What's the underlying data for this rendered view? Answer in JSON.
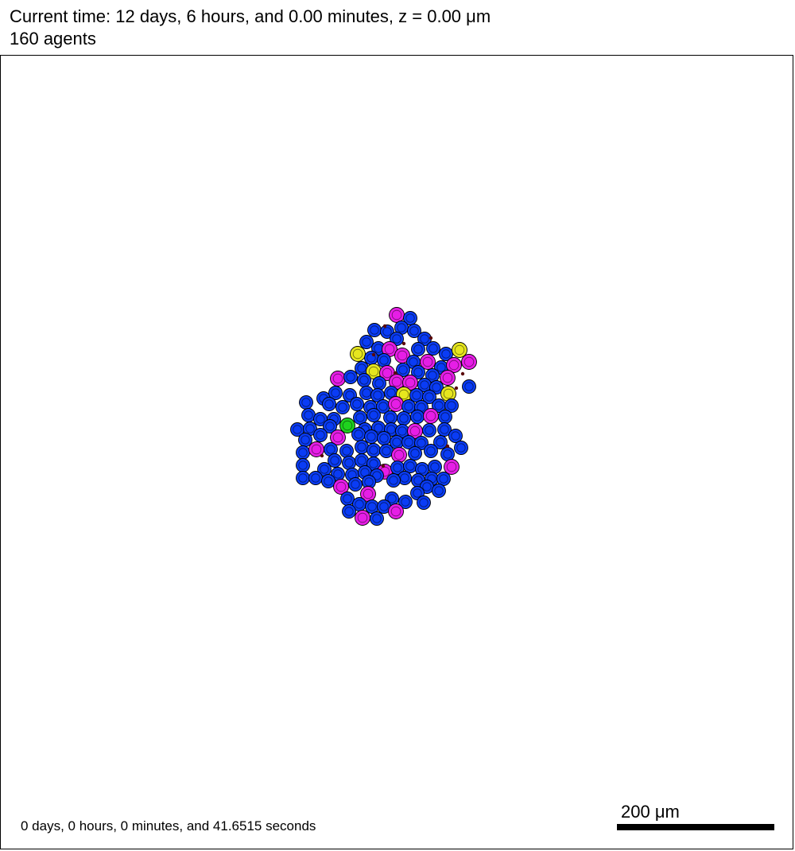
{
  "header": {
    "time_text": "Current time: 12 days, 6 hours, and 0.00 minutes, z = 0.00 μm",
    "agents_text": "160 agents"
  },
  "footer": {
    "elapsed_text": "0 days, 0 hours, 0 minutes, and 41.6515 seconds",
    "scale_label": "200 μm"
  },
  "colors": {
    "blue_cell": "#0a3cf5",
    "magenta_cell": "#e61ee6",
    "yellow_cell": "#e6e61e",
    "green_cell": "#1ed21e",
    "debris": "#5a0a0a",
    "outline": "#000000"
  },
  "legend": {
    "cell_types": [
      "blue-cell",
      "magenta-cell",
      "yellow-cell",
      "green-cell",
      "debris-dot"
    ]
  }
}
